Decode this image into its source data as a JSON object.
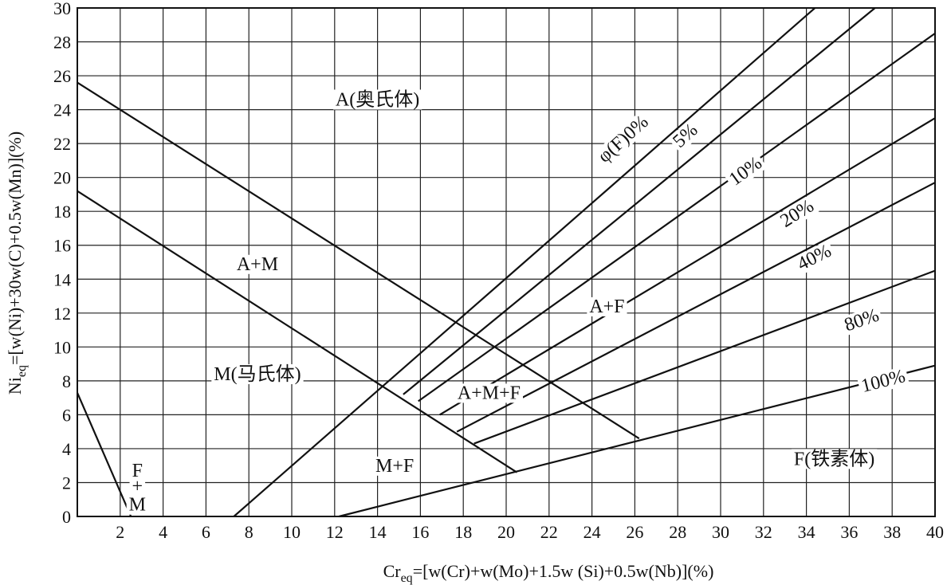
{
  "chart_data": {
    "type": "line",
    "xlabel": "Cr_eq=[w(Cr)+w(Mo)+1.5w (Si)+0.5w(Nb)](%)",
    "ylabel": "Ni_eq=[w(Ni)+30w(C)+0.5w(Mn)](%)",
    "xlabel_parts": {
      "sym": "Cr",
      "sub": "eq",
      "rest": "=[w(Cr)+w(Mo)+1.5w (Si)+0.5w(Nb)](%)"
    },
    "ylabel_parts": {
      "sym": "Ni",
      "sub": "eq",
      "rest": "=[w(Ni)+30w(C)+0.5w(Mn)](%)"
    },
    "xlim": [
      0,
      40
    ],
    "ylim": [
      0,
      30
    ],
    "x_ticks": [
      2,
      4,
      6,
      8,
      10,
      12,
      14,
      16,
      18,
      20,
      22,
      24,
      26,
      28,
      30,
      32,
      34,
      36,
      38,
      40
    ],
    "y_ticks": [
      0,
      2,
      4,
      6,
      8,
      10,
      12,
      14,
      16,
      18,
      20,
      22,
      24,
      26,
      28,
      30
    ],
    "grid": true,
    "series": [
      {
        "points": [
          [
            0,
            25.6
          ],
          [
            26.2,
            4.6
          ]
        ]
      },
      {
        "points": [
          [
            0,
            19.2
          ],
          [
            20.5,
            2.6
          ]
        ]
      },
      {
        "points": [
          [
            0,
            7.3
          ],
          [
            2.5,
            0
          ]
        ]
      },
      {
        "points": [
          [
            12.2,
            0
          ],
          [
            40,
            8.9
          ]
        ]
      },
      {
        "name": "φ(F)0%",
        "points": [
          [
            7.3,
            0
          ],
          [
            34.4,
            30
          ]
        ]
      },
      {
        "name": "5%",
        "points": [
          [
            15.2,
            7.2
          ],
          [
            37.2,
            30
          ]
        ]
      },
      {
        "name": "10%",
        "points": [
          [
            15.9,
            6.8
          ],
          [
            40,
            28.5
          ]
        ]
      },
      {
        "name": "20%",
        "points": [
          [
            16.9,
            6.0
          ],
          [
            40,
            23.5
          ]
        ]
      },
      {
        "name": "40%",
        "points": [
          [
            17.7,
            5.0
          ],
          [
            40,
            19.7
          ]
        ]
      },
      {
        "name": "80%",
        "points": [
          [
            18.5,
            4.3
          ],
          [
            40,
            14.5
          ]
        ]
      }
    ],
    "annotations": [
      {
        "text": "A(奥氏体)",
        "x": 14,
        "y": 24.5
      },
      {
        "text": "A+M",
        "x": 8.4,
        "y": 14.8
      },
      {
        "text": "M(马氏体)",
        "x": 8.4,
        "y": 8.3
      },
      {
        "text": "A+F",
        "x": 24.7,
        "y": 12.3
      },
      {
        "text": "A+M+F",
        "x": 19.2,
        "y": 7.2
      },
      {
        "text": "M+F",
        "x": 14.8,
        "y": 2.9
      },
      {
        "text": "F(铁素体)",
        "x": 35.3,
        "y": 3.3
      },
      {
        "text": "F",
        "x": 2.8,
        "y": 2.6
      },
      {
        "text": "+",
        "x": 2.8,
        "y": 1.7
      },
      {
        "text": "M",
        "x": 2.8,
        "y": 0.6
      },
      {
        "text": "φ(F)0%",
        "x": 25.5,
        "y": 22.2,
        "angle": -42
      },
      {
        "text": "5%",
        "x": 28.4,
        "y": 22.4,
        "angle": -42
      },
      {
        "text": "10%",
        "x": 31.2,
        "y": 20.3,
        "angle": -36
      },
      {
        "text": "20%",
        "x": 33.6,
        "y": 17.8,
        "angle": -32
      },
      {
        "text": "40%",
        "x": 34.4,
        "y": 15.2,
        "angle": -27
      },
      {
        "text": "80%",
        "x": 36.6,
        "y": 11.5,
        "angle": -19
      },
      {
        "text": "100%",
        "x": 37.6,
        "y": 7.9,
        "angle": -14
      }
    ]
  }
}
